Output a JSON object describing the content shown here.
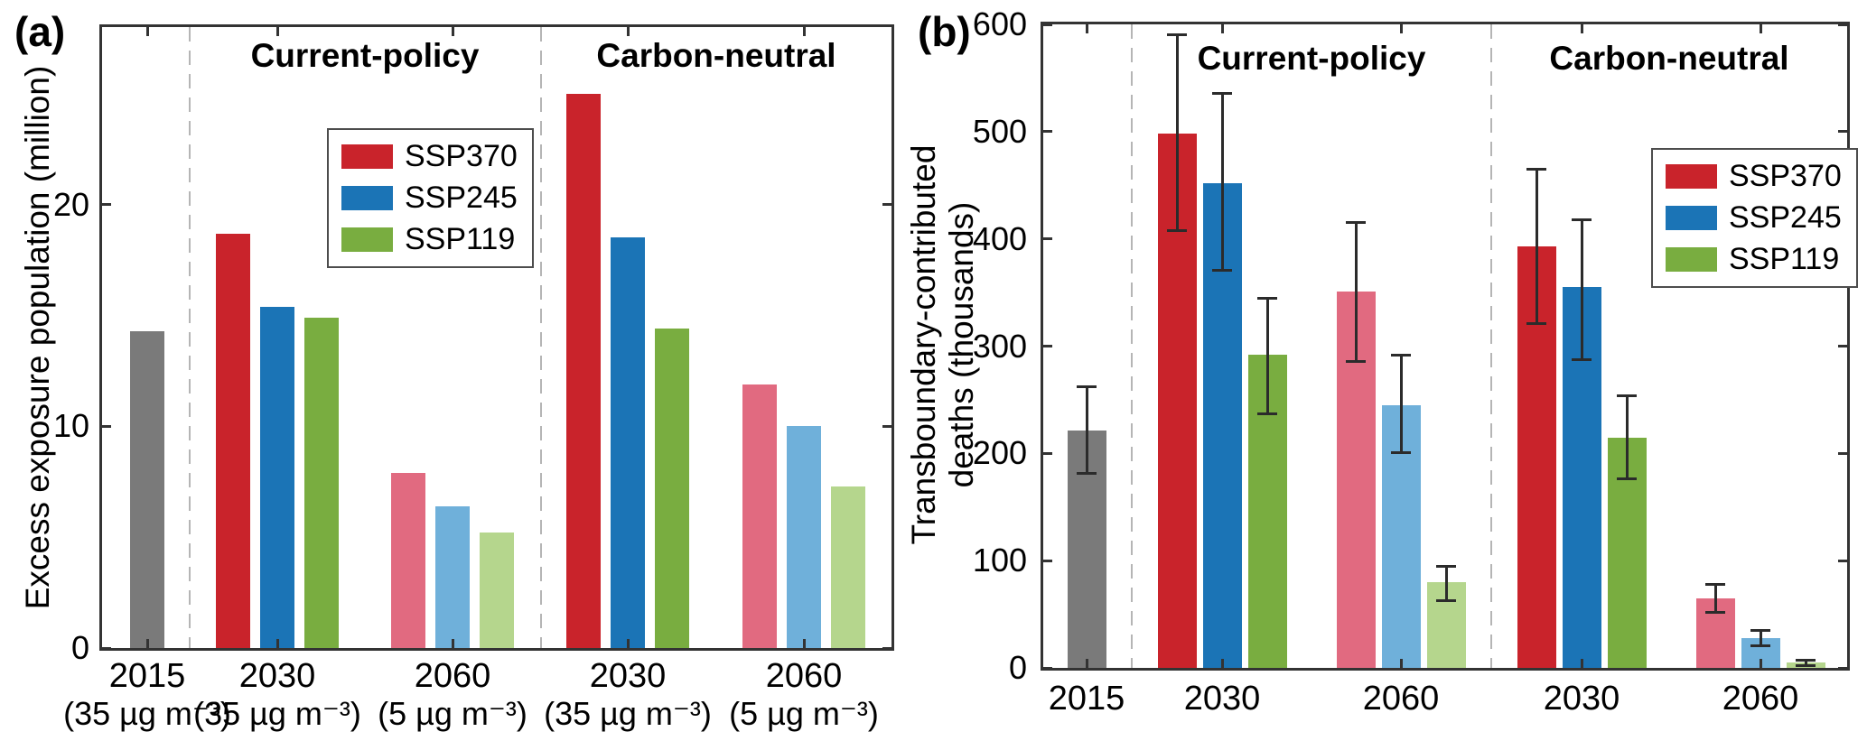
{
  "colors": {
    "SSP370": "#c9232b",
    "SSP245": "#1b74b6",
    "SSP119": "#79ad40",
    "SSP370_light": "#e16a80",
    "SSP245_light": "#6fb0da",
    "SSP119_light": "#b5d68d",
    "baseline": "#7a7a7a",
    "error_bar": "#2b2b2b",
    "separator": "#b5b5b5",
    "axis": "#333333"
  },
  "chart_data": [
    {
      "id": "a",
      "type": "bar",
      "panel_label": "(a)",
      "ylabel": "Excess exposure population (million)",
      "xlabel": "",
      "ylim": [
        0,
        28
      ],
      "yticks": [
        0,
        10,
        20
      ],
      "grid": false,
      "unit": "million",
      "sections": [
        {
          "label": "Current-policy"
        },
        {
          "label": "Carbon-neutral"
        }
      ],
      "legend": {
        "entries": [
          "SSP370",
          "SSP245",
          "SSP119"
        ],
        "position": "upper-center-left"
      },
      "groups": [
        {
          "label": "2015",
          "sublabel": "(35 µg m⁻³)",
          "section": "baseline",
          "variant": "baseline",
          "bars": [
            {
              "series": "2015",
              "value": 14.3
            }
          ]
        },
        {
          "label": "2030",
          "sublabel": "(35 µg m⁻³)",
          "section": "Current-policy",
          "variant": "dark",
          "bars": [
            {
              "series": "SSP370",
              "value": 18.7
            },
            {
              "series": "SSP245",
              "value": 15.4
            },
            {
              "series": "SSP119",
              "value": 14.9
            }
          ]
        },
        {
          "label": "2060",
          "sublabel": "(5 µg m⁻³)",
          "section": "Current-policy",
          "variant": "light",
          "bars": [
            {
              "series": "SSP370",
              "value": 7.9
            },
            {
              "series": "SSP245",
              "value": 6.4
            },
            {
              "series": "SSP119",
              "value": 5.2
            }
          ]
        },
        {
          "label": "2030",
          "sublabel": "(35 µg m⁻³)",
          "section": "Carbon-neutral",
          "variant": "dark",
          "bars": [
            {
              "series": "SSP370",
              "value": 25.0
            },
            {
              "series": "SSP245",
              "value": 18.5
            },
            {
              "series": "SSP119",
              "value": 14.4
            }
          ]
        },
        {
          "label": "2060",
          "sublabel": "(5 µg m⁻³)",
          "section": "Carbon-neutral",
          "variant": "light",
          "bars": [
            {
              "series": "SSP370",
              "value": 11.9
            },
            {
              "series": "SSP245",
              "value": 10.0
            },
            {
              "series": "SSP119",
              "value": 7.3
            }
          ]
        }
      ]
    },
    {
      "id": "b",
      "type": "bar",
      "panel_label": "(b)",
      "ylabel": "Transboundary-contributed deaths (thousands)",
      "ylabel_lines": [
        "Transboundary-contributed",
        "deaths (thousands)"
      ],
      "xlabel": "",
      "ylim": [
        0,
        600
      ],
      "yticks": [
        0,
        100,
        200,
        300,
        400,
        500,
        600
      ],
      "grid": false,
      "unit": "thousands",
      "sections": [
        {
          "label": "Current-policy"
        },
        {
          "label": "Carbon-neutral"
        }
      ],
      "legend": {
        "entries": [
          "SSP370",
          "SSP245",
          "SSP119"
        ],
        "position": "middle-right"
      },
      "groups": [
        {
          "label": "2015",
          "section": "baseline",
          "variant": "baseline",
          "bars": [
            {
              "series": "2015",
              "value": 221,
              "lo": 181,
              "hi": 262
            }
          ]
        },
        {
          "label": "2030",
          "section": "Current-policy",
          "variant": "dark",
          "bars": [
            {
              "series": "SSP370",
              "value": 498,
              "lo": 408,
              "hi": 590
            },
            {
              "series": "SSP245",
              "value": 452,
              "lo": 371,
              "hi": 536
            },
            {
              "series": "SSP119",
              "value": 292,
              "lo": 237,
              "hi": 345
            }
          ]
        },
        {
          "label": "2060",
          "section": "Current-policy",
          "variant": "light",
          "bars": [
            {
              "series": "SSP370",
              "value": 351,
              "lo": 286,
              "hi": 415
            },
            {
              "series": "SSP245",
              "value": 245,
              "lo": 201,
              "hi": 292
            },
            {
              "series": "SSP119",
              "value": 80,
              "lo": 63,
              "hi": 95
            }
          ]
        },
        {
          "label": "2030",
          "section": "Carbon-neutral",
          "variant": "dark",
          "bars": [
            {
              "series": "SSP370",
              "value": 393,
              "lo": 321,
              "hi": 465
            },
            {
              "series": "SSP245",
              "value": 355,
              "lo": 287,
              "hi": 418
            },
            {
              "series": "SSP119",
              "value": 215,
              "lo": 176,
              "hi": 254
            }
          ]
        },
        {
          "label": "2060",
          "section": "Carbon-neutral",
          "variant": "light",
          "bars": [
            {
              "series": "SSP370",
              "value": 65,
              "lo": 52,
              "hi": 78
            },
            {
              "series": "SSP245",
              "value": 28,
              "lo": 21,
              "hi": 35
            },
            {
              "series": "SSP119",
              "value": 5,
              "lo": 2,
              "hi": 7
            }
          ]
        }
      ]
    }
  ]
}
